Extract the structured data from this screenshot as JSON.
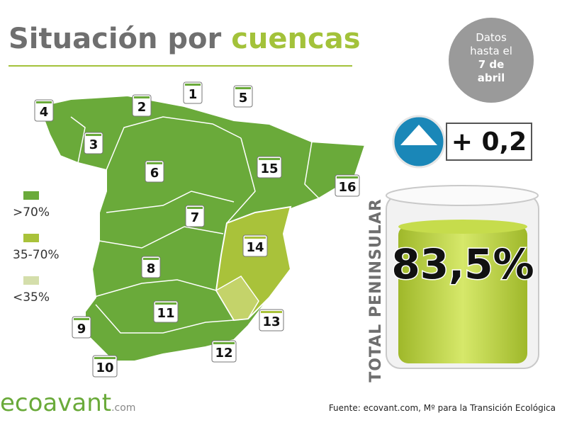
{
  "header": {
    "title_plain": "Situación por",
    "title_accent": "cuencas"
  },
  "date_badge": {
    "lines": [
      "Datos",
      "hasta el",
      "7 de",
      "abril"
    ]
  },
  "change": "+ 0,2",
  "legend": [
    {
      "label": ">70%",
      "color": "#6aaa3a"
    },
    {
      "label": "35-70%",
      "color": "#a9c23a"
    },
    {
      "label": "<35%",
      "color": "#d4deab"
    }
  ],
  "basins": [
    {
      "label": "1",
      "color": "#6aaa3a"
    },
    {
      "label": "2",
      "color": "#6aaa3a"
    },
    {
      "label": "3",
      "color": "#6aaa3a"
    },
    {
      "label": "4",
      "color": "#6aaa3a"
    },
    {
      "label": "5",
      "color": "#6aaa3a"
    },
    {
      "label": "6",
      "color": "#6aaa3a"
    },
    {
      "label": "7",
      "color": "#6aaa3a"
    },
    {
      "label": "8",
      "color": "#6aaa3a"
    },
    {
      "label": "9",
      "color": "#6aaa3a"
    },
    {
      "label": "10",
      "color": "#6aaa3a"
    },
    {
      "label": "11",
      "color": "#6aaa3a"
    },
    {
      "label": "12",
      "color": "#6aaa3a"
    },
    {
      "label": "13",
      "color": "#a9c23a"
    },
    {
      "label": "14",
      "color": "#a9c23a"
    },
    {
      "label": "15",
      "color": "#6aaa3a"
    },
    {
      "label": "16",
      "color": "#6aaa3a"
    }
  ],
  "total": {
    "label": "TOTAL PENINSULAR",
    "value": "83,5%"
  },
  "footer": {
    "brand": "ecoavant",
    "brand_domain": ".com",
    "source": "Fuente: ecovant.com, Mº para la Transición Ecológica"
  }
}
